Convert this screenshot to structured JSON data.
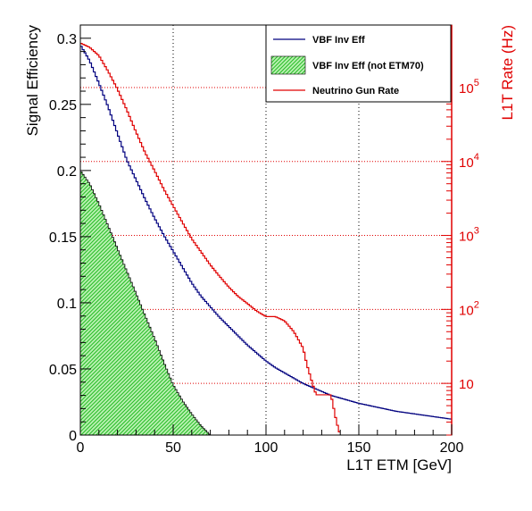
{
  "chart_data": {
    "type": "line",
    "title": "",
    "xlabel": "L1T ETM [GeV]",
    "ylabel": "Signal Efficiency",
    "y2label": "L1T Rate (Hz)",
    "xlim": [
      0,
      200
    ],
    "ylim": [
      0,
      0.31
    ],
    "y2lim": [
      2,
      700000
    ],
    "y2scale": "log",
    "grid": true,
    "legend_position": "top-right",
    "colors": {
      "eff": "#00007f",
      "fill": "#22bb22",
      "rate": "#e00000",
      "grid": "#e00000"
    },
    "xticks": [
      0,
      50,
      100,
      150,
      200
    ],
    "yticks": [
      0,
      0.05,
      0.1,
      0.15,
      0.2,
      0.25,
      0.3
    ],
    "ytick_labels": [
      "0",
      "0.05",
      "0.1",
      "0.15",
      "0.2",
      "0.25",
      "0.3"
    ],
    "y2ticks": [
      10,
      100,
      1000,
      10000,
      100000
    ],
    "y2tick_labels": [
      {
        "base": "10",
        "exp": ""
      },
      {
        "base": "10",
        "exp": "2"
      },
      {
        "base": "10",
        "exp": "3"
      },
      {
        "base": "10",
        "exp": "4"
      },
      {
        "base": "10",
        "exp": "5"
      }
    ],
    "legend": [
      {
        "label": "VBF Inv Eff",
        "kind": "line",
        "color": "#00007f"
      },
      {
        "label": "VBF Inv Eff (not ETM70)",
        "kind": "fill",
        "color": "#22bb22"
      },
      {
        "label": "Neutrino Gun Rate",
        "kind": "line",
        "color": "#e00000"
      }
    ],
    "series": [
      {
        "name": "VBF Inv Eff",
        "axis": "left",
        "x": [
          0,
          5,
          10,
          15,
          20,
          25,
          30,
          35,
          40,
          45,
          50,
          55,
          60,
          65,
          70,
          75,
          80,
          85,
          90,
          95,
          100,
          105,
          110,
          115,
          120,
          125,
          130,
          135,
          140,
          145,
          150,
          160,
          170,
          180,
          190,
          200
        ],
        "y": [
          0.295,
          0.283,
          0.266,
          0.248,
          0.228,
          0.208,
          0.193,
          0.178,
          0.164,
          0.151,
          0.139,
          0.127,
          0.115,
          0.105,
          0.097,
          0.089,
          0.082,
          0.075,
          0.068,
          0.062,
          0.056,
          0.051,
          0.047,
          0.043,
          0.039,
          0.036,
          0.033,
          0.03,
          0.028,
          0.026,
          0.024,
          0.021,
          0.018,
          0.016,
          0.014,
          0.012
        ]
      },
      {
        "name": "VBF Inv Eff (not ETM70)",
        "axis": "left",
        "fill": true,
        "x": [
          0,
          5,
          10,
          15,
          20,
          25,
          30,
          35,
          40,
          45,
          50,
          55,
          60,
          65,
          70
        ],
        "y": [
          0.2,
          0.19,
          0.175,
          0.158,
          0.141,
          0.124,
          0.107,
          0.09,
          0.073,
          0.055,
          0.038,
          0.026,
          0.016,
          0.007,
          0.0
        ]
      },
      {
        "name": "Neutrino Gun Rate",
        "axis": "right",
        "x": [
          0,
          5,
          10,
          15,
          20,
          25,
          30,
          35,
          40,
          45,
          50,
          55,
          60,
          65,
          70,
          75,
          80,
          85,
          90,
          95,
          100,
          105,
          110,
          115,
          120,
          122,
          125,
          127,
          130,
          135,
          138,
          140
        ],
        "y": [
          400000,
          350000,
          270000,
          165000,
          95000,
          50000,
          25000,
          13000,
          7500,
          4200,
          2500,
          1500,
          900,
          600,
          400,
          280,
          200,
          150,
          120,
          95,
          80,
          80,
          70,
          50,
          30,
          18,
          10,
          7,
          7,
          7,
          3,
          2
        ]
      }
    ]
  }
}
